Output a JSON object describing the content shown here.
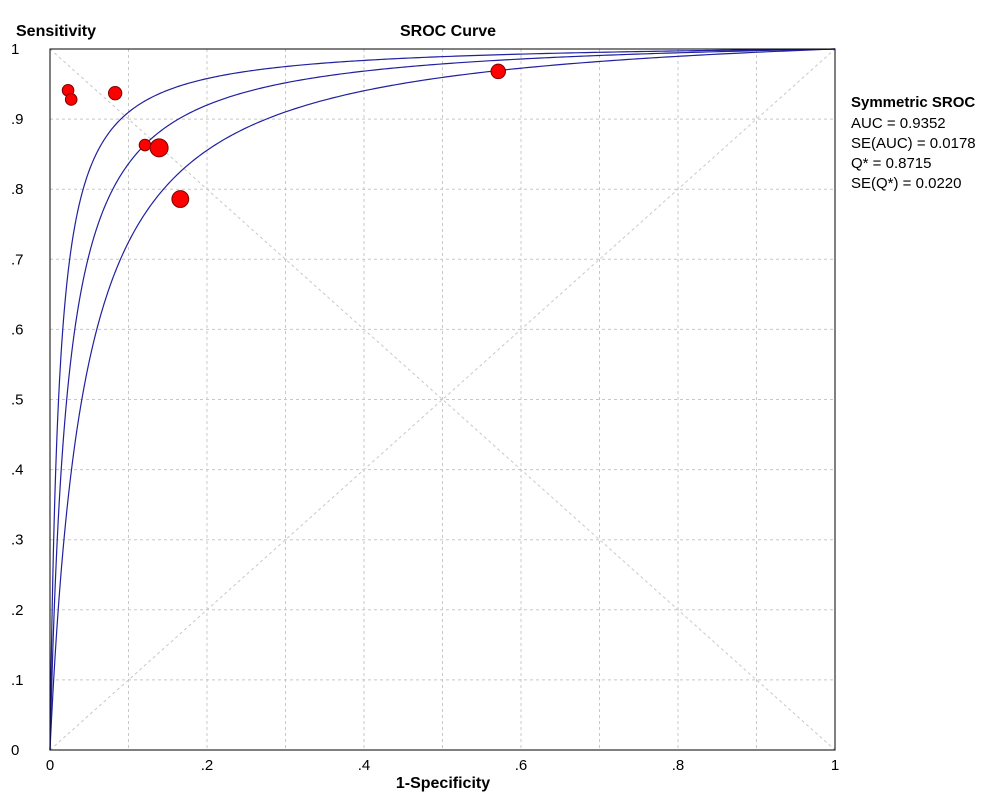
{
  "chart_data": {
    "type": "scatter",
    "title": "SROC Curve",
    "xlabel": "1-Specificity",
    "ylabel": "Sensitivity",
    "xlim": [
      0,
      1
    ],
    "ylim": [
      0,
      1
    ],
    "grid": true,
    "x_ticks": [
      0,
      0.1,
      0.2,
      0.3,
      0.4,
      0.5,
      0.6,
      0.7,
      0.8,
      0.9,
      1
    ],
    "x_tick_labels": [
      "0",
      ".2",
      ".4",
      ".6",
      ".8",
      "1"
    ],
    "x_tick_label_values": [
      0,
      0.2,
      0.4,
      0.6,
      0.8,
      1
    ],
    "y_tick_labels": [
      "0",
      ".1",
      ".2",
      ".3",
      ".4",
      ".5",
      ".6",
      ".7",
      ".8",
      ".9",
      "1"
    ],
    "y_tick_label_values": [
      0,
      0.1,
      0.2,
      0.3,
      0.4,
      0.5,
      0.6,
      0.7,
      0.8,
      0.9,
      1
    ],
    "colors": {
      "points": "#ff0000",
      "curves": "#2020a0",
      "grid": "#c8c8c8"
    },
    "points": [
      {
        "x": 0.023,
        "y": 0.941,
        "weight": 1.0
      },
      {
        "x": 0.027,
        "y": 0.928,
        "weight": 1.0
      },
      {
        "x": 0.083,
        "y": 0.937,
        "weight": 1.15
      },
      {
        "x": 0.121,
        "y": 0.863,
        "weight": 1.0
      },
      {
        "x": 0.139,
        "y": 0.859,
        "weight": 1.55
      },
      {
        "x": 0.166,
        "y": 0.786,
        "weight": 1.45
      },
      {
        "x": 0.571,
        "y": 0.968,
        "weight": 1.25
      }
    ],
    "curves": [
      {
        "role": "upper",
        "Q": 0.905
      },
      {
        "role": "sroc",
        "Q": 0.8715
      },
      {
        "role": "lower",
        "Q": 0.8295
      }
    ],
    "stats": {
      "title": "Symmetric SROC",
      "lines": [
        "AUC = 0.9352",
        "SE(AUC) = 0.0178",
        "Q* = 0.8715",
        "SE(Q*) = 0.0220"
      ]
    }
  }
}
